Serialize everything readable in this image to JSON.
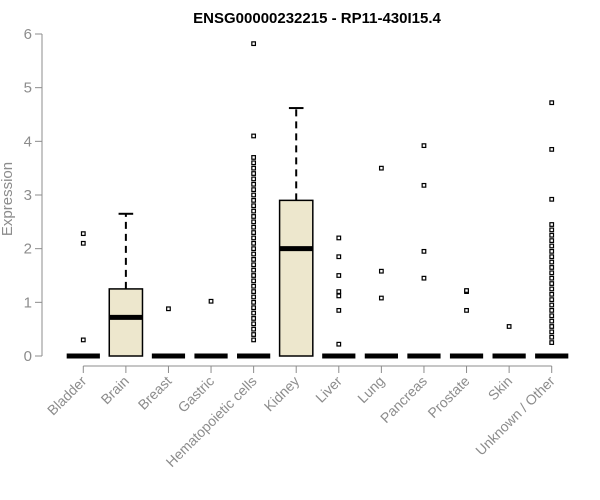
{
  "chart_data": {
    "type": "box",
    "title": "ENSG00000232215 - RP11-430I15.4",
    "xlabel": "",
    "ylabel": "Expression",
    "ylim": [
      0,
      6
    ],
    "yticks": [
      "0",
      "1",
      "2",
      "3",
      "4",
      "5",
      "6"
    ],
    "box_fill": "#ede7cd",
    "categories": [
      "Bladder",
      "Brain",
      "Breast",
      "Gastric",
      "Hematopoietic cells",
      "Kidney",
      "Liver",
      "Lung",
      "Pancreas",
      "Prostate",
      "Skin",
      "Unknown / Other"
    ],
    "boxes": [
      {
        "name": "Bladder",
        "q1": 0,
        "median": 0,
        "q3": 0,
        "whisker_low": 0,
        "whisker_high": 0,
        "outliers": [
          0.3,
          2.1,
          2.28
        ]
      },
      {
        "name": "Brain",
        "q1": 0,
        "median": 0.72,
        "q3": 1.25,
        "whisker_low": 0,
        "whisker_high": 2.65,
        "outliers": []
      },
      {
        "name": "Breast",
        "q1": 0,
        "median": 0,
        "q3": 0,
        "whisker_low": 0,
        "whisker_high": 0,
        "outliers": [
          0.88
        ]
      },
      {
        "name": "Gastric",
        "q1": 0,
        "median": 0,
        "q3": 0,
        "whisker_low": 0,
        "whisker_high": 0,
        "outliers": [
          1.02
        ]
      },
      {
        "name": "Hematopoietic cells",
        "q1": 0,
        "median": 0,
        "q3": 0,
        "whisker_low": 0,
        "whisker_high": 0,
        "outliers": [
          0.3,
          0.4,
          0.5,
          0.6,
          0.7,
          0.8,
          0.9,
          1.0,
          1.1,
          1.2,
          1.3,
          1.4,
          1.5,
          1.6,
          1.7,
          1.8,
          1.9,
          2.0,
          2.1,
          2.2,
          2.3,
          2.4,
          2.5,
          2.6,
          2.7,
          2.8,
          2.9,
          3.0,
          3.1,
          3.2,
          3.3,
          3.4,
          3.5,
          3.6,
          3.7,
          4.1,
          5.82
        ]
      },
      {
        "name": "Kidney",
        "q1": 0,
        "median": 2.0,
        "q3": 2.9,
        "whisker_low": 0,
        "whisker_high": 4.62,
        "outliers": []
      },
      {
        "name": "Liver",
        "q1": 0,
        "median": 0,
        "q3": 0,
        "whisker_low": 0,
        "whisker_high": 0,
        "outliers": [
          0.22,
          0.85,
          1.12,
          1.2,
          1.5,
          1.85,
          2.2
        ]
      },
      {
        "name": "Lung",
        "q1": 0,
        "median": 0,
        "q3": 0,
        "whisker_low": 0,
        "whisker_high": 0,
        "outliers": [
          1.08,
          1.58,
          3.5
        ]
      },
      {
        "name": "Pancreas",
        "q1": 0,
        "median": 0,
        "q3": 0,
        "whisker_low": 0,
        "whisker_high": 0,
        "outliers": [
          1.45,
          1.95,
          3.18,
          3.92
        ]
      },
      {
        "name": "Prostate",
        "q1": 0,
        "median": 0,
        "q3": 0,
        "whisker_low": 0,
        "whisker_high": 0,
        "outliers": [
          0.85,
          1.2,
          1.22
        ]
      },
      {
        "name": "Skin",
        "q1": 0,
        "median": 0,
        "q3": 0,
        "whisker_low": 0,
        "whisker_high": 0,
        "outliers": [
          0.55
        ]
      },
      {
        "name": "Unknown / Other",
        "q1": 0,
        "median": 0,
        "q3": 0,
        "whisker_low": 0,
        "whisker_high": 0,
        "outliers": [
          0.25,
          0.35,
          0.45,
          0.55,
          0.65,
          0.75,
          0.85,
          0.95,
          1.05,
          1.15,
          1.25,
          1.35,
          1.45,
          1.55,
          1.65,
          1.75,
          1.85,
          1.95,
          2.05,
          2.15,
          2.25,
          2.35,
          2.45,
          2.92,
          3.85,
          4.72
        ]
      }
    ]
  }
}
